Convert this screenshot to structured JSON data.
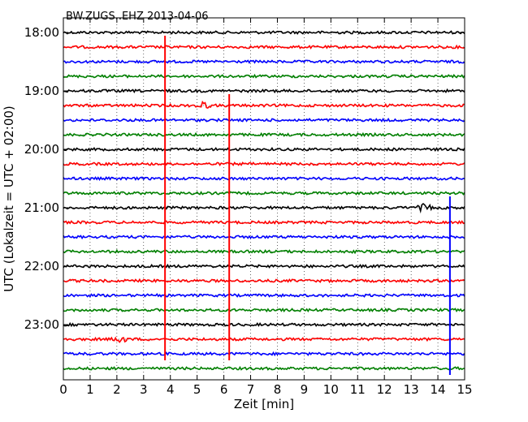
{
  "chart_data": {
    "type": "line",
    "title": "BW.ZUGS..EHZ 2013-04-06",
    "xlabel": "Zeit  [min]",
    "ylabel": "UTC (Lokalzeit = UTC + 02:00)",
    "xlim": [
      0,
      15
    ],
    "x_ticks": [
      "0",
      "1",
      "2",
      "3",
      "4",
      "5",
      "6",
      "7",
      "8",
      "9",
      "10",
      "11",
      "12",
      "13",
      "14",
      "15"
    ],
    "y_ticks": [
      "18:00",
      "19:00",
      "20:00",
      "21:00",
      "22:00",
      "23:00"
    ],
    "grid": true,
    "trace_colors": [
      "#000000",
      "#ff0000",
      "#0000ff",
      "#008000"
    ],
    "traces": [
      {
        "start": "18:00",
        "color": "#000000"
      },
      {
        "start": "18:15",
        "color": "#ff0000"
      },
      {
        "start": "18:30",
        "color": "#0000ff"
      },
      {
        "start": "18:45",
        "color": "#008000"
      },
      {
        "start": "19:00",
        "color": "#000000"
      },
      {
        "start": "19:15",
        "color": "#ff0000"
      },
      {
        "start": "19:30",
        "color": "#0000ff"
      },
      {
        "start": "19:45",
        "color": "#008000"
      },
      {
        "start": "20:00",
        "color": "#000000"
      },
      {
        "start": "20:15",
        "color": "#ff0000"
      },
      {
        "start": "20:30",
        "color": "#0000ff"
      },
      {
        "start": "20:45",
        "color": "#008000"
      },
      {
        "start": "21:00",
        "color": "#000000"
      },
      {
        "start": "21:15",
        "color": "#ff0000"
      },
      {
        "start": "21:30",
        "color": "#0000ff"
      },
      {
        "start": "21:45",
        "color": "#008000"
      },
      {
        "start": "22:00",
        "color": "#000000"
      },
      {
        "start": "22:15",
        "color": "#ff0000"
      },
      {
        "start": "22:30",
        "color": "#0000ff"
      },
      {
        "start": "22:45",
        "color": "#008000"
      },
      {
        "start": "23:00",
        "color": "#000000"
      },
      {
        "start": "23:15",
        "color": "#ff0000"
      },
      {
        "start": "23:30",
        "color": "#0000ff"
      },
      {
        "start": "23:45",
        "color": "#008000"
      }
    ],
    "events": [
      {
        "trace": 1,
        "minute": 3.8,
        "kind": "spike",
        "color": "#ff0000",
        "up_to_trace": 22
      },
      {
        "trace": 5,
        "minute": 6.2,
        "kind": "spike",
        "color": "#ff0000",
        "up_to_trace": 22
      },
      {
        "trace": 12,
        "minute": 14.45,
        "kind": "spike",
        "color": "#0000ff",
        "up_to_trace": 23
      },
      {
        "trace": 5,
        "minute": 5.2,
        "kind": "burst",
        "color": "#ff0000"
      },
      {
        "trace": 21,
        "minute": 2.1,
        "kind": "burst",
        "color": "#ff0000"
      },
      {
        "trace": 12,
        "minute": 13.5,
        "kind": "burst",
        "color": "#000000"
      }
    ]
  }
}
